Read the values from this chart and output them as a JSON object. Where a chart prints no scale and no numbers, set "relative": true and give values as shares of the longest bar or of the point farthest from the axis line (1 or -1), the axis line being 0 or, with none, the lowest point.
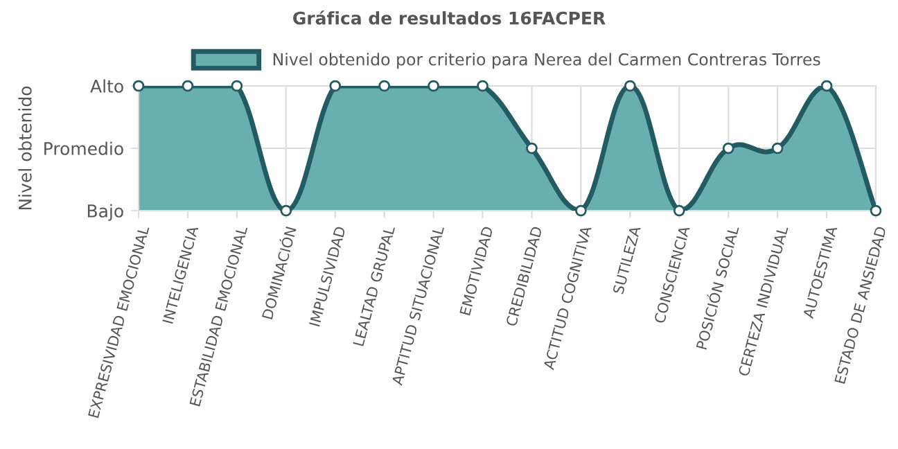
{
  "chart_data": {
    "type": "area",
    "title": "Gráfica de resultados 16FACPER",
    "ylabel": "Nivel obtenido",
    "relative": true,
    "categories": [
      "EXPRESIVIDAD EMOCIONAL",
      "INTELIGENCIA",
      "ESTABILIDAD EMOCIONAL",
      "DOMINACIÓN",
      "IMPULSIVIDAD",
      "LEALTAD GRUPAL",
      "APTITUD SITUACIONAL",
      "EMOTIVIDAD",
      "CREDIBILIDAD",
      "ACTITUD COGNITIVA",
      "SUTILEZA",
      "CONSCIENCIA",
      "POSICIÓN SOCIAL",
      "CERTEZA INDIVIDUAL",
      "AUTOESTIMA",
      "ESTADO DE ANSIEDAD"
    ],
    "y_categories": [
      "Alto",
      "Promedio",
      "Bajo"
    ],
    "series": [
      {
        "name": "Nivel obtenido por criterio para Nerea del Carmen Contreras Torres",
        "color": "#6aafb0",
        "values": [
          1,
          1,
          1,
          0,
          1,
          1,
          1,
          1,
          0.5,
          0,
          1,
          0,
          0.5,
          0.5,
          1,
          0
        ]
      }
    ],
    "grid": true,
    "legend": "top",
    "marker": "circle",
    "line_style": "solid"
  }
}
